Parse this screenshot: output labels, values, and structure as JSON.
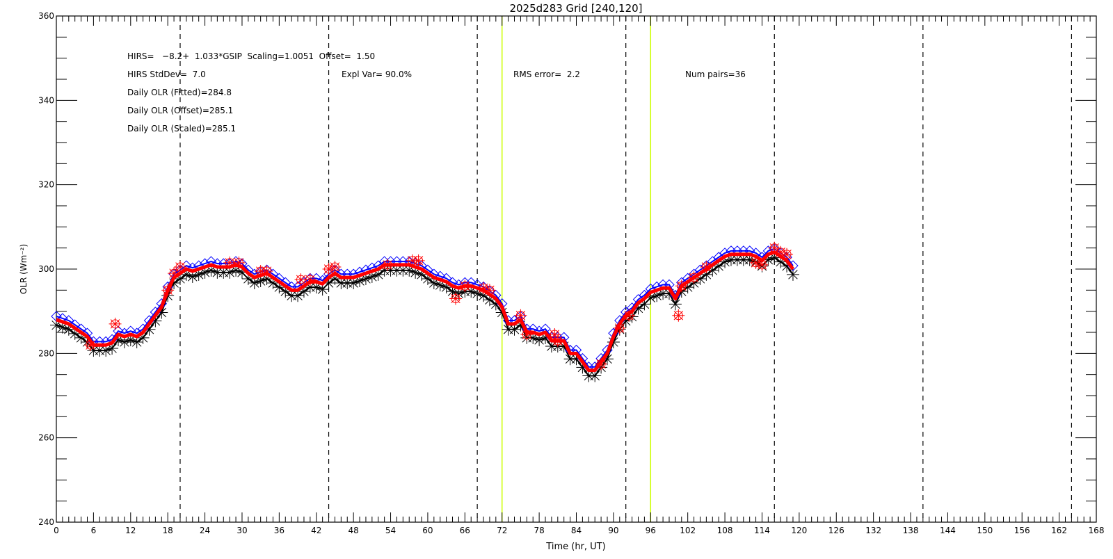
{
  "chart_data": {
    "type": "line",
    "title": "2025d283 Grid [240,120]",
    "xlabel": "Time (hr, UT)",
    "ylabel": "OLR (Wm⁻²)",
    "xlim": [
      0,
      168
    ],
    "ylim": [
      240,
      360
    ],
    "xticks": [
      0,
      6,
      12,
      18,
      24,
      30,
      36,
      42,
      48,
      54,
      60,
      66,
      72,
      78,
      84,
      90,
      96,
      102,
      108,
      114,
      120,
      126,
      132,
      138,
      144,
      150,
      156,
      162,
      168
    ],
    "yticks": [
      240,
      260,
      280,
      300,
      320,
      340,
      360
    ],
    "grid": false,
    "dashed_vlines": [
      20,
      44,
      68,
      92,
      116,
      140,
      164
    ],
    "highlight_vlines": [
      72,
      96
    ],
    "colors": {
      "fitted": "#ff0000",
      "diamonds": "#0000ff",
      "black": "#000000",
      "hirs": "#ff0000",
      "highlight": "#ccff00"
    },
    "annotations": {
      "line1": "HIRS=   −8.2+  1.033*GSIP  Scaling=1.0051  Offset=  1.50",
      "line2": "HIRS StdDev=  7.0",
      "line3": "Daily OLR (Fitted)=284.8",
      "line4": "Daily OLR (Offset)=285.1",
      "line5": "Daily OLR (Scaled)=285.1",
      "expl_var": "Expl Var= 90.0%",
      "rms": "RMS error=  2.2",
      "num_pairs": "Num pairs=36"
    },
    "fitted_line": {
      "x": [
        0,
        1,
        2,
        3,
        4,
        5,
        6,
        7,
        8,
        9,
        10,
        11,
        12,
        13,
        14,
        15,
        16,
        17,
        18,
        19,
        20,
        21,
        22,
        23,
        24,
        25,
        26,
        27,
        28,
        29,
        30,
        31,
        32,
        33,
        34,
        35,
        36,
        37,
        38,
        39,
        40,
        41,
        42,
        43,
        44,
        45,
        46,
        47,
        48,
        49,
        50,
        51,
        52,
        53,
        54,
        55,
        56,
        57,
        58,
        59,
        60,
        61,
        62,
        63,
        64,
        65,
        66,
        67,
        68,
        69,
        70,
        71,
        72,
        73,
        74,
        75,
        76,
        77,
        78,
        79,
        80,
        81,
        82,
        83,
        84,
        85,
        86,
        87,
        88,
        89,
        90,
        91,
        92,
        93,
        94,
        95,
        96,
        97,
        98,
        99,
        100,
        101,
        102,
        103,
        104,
        105,
        106,
        107,
        108,
        109,
        110,
        111,
        112,
        113,
        114,
        115,
        116,
        117,
        118,
        119
      ],
      "y": [
        288,
        287.5,
        287,
        286,
        285,
        284,
        282,
        282,
        282,
        282.5,
        284.5,
        284,
        284.5,
        284,
        285,
        287,
        289,
        291,
        295,
        298,
        299,
        300,
        299.5,
        300,
        300.5,
        301,
        300.5,
        300.5,
        300.5,
        301,
        300.5,
        299,
        298,
        298.5,
        299,
        298,
        297,
        296,
        295,
        295,
        296,
        297,
        297,
        296.5,
        298,
        299,
        298,
        298,
        298,
        298.5,
        299,
        299.5,
        300,
        301,
        301,
        301,
        301,
        301,
        300.5,
        300,
        299,
        298,
        297.5,
        297,
        296,
        295.5,
        296,
        296,
        295.5,
        295,
        294,
        293,
        291,
        287,
        287,
        288,
        285,
        285,
        284.5,
        285,
        283,
        283,
        283,
        280,
        280,
        278,
        276,
        276,
        278,
        280,
        284,
        287,
        289,
        290,
        292,
        293,
        294.5,
        295,
        295.5,
        295.5,
        293,
        296,
        297,
        298,
        299,
        300,
        301,
        302,
        303,
        303.5,
        303.5,
        303.5,
        303.5,
        303,
        302,
        303.5,
        304,
        303,
        302,
        300
      ]
    },
    "diamond_offset": 0.8,
    "black_offset": -1.3,
    "hirs_points": {
      "x": [
        5.5,
        9.5,
        18,
        19,
        20,
        28,
        29.5,
        33,
        34,
        39.5,
        41,
        44,
        45,
        53.5,
        57.5,
        58.5,
        64.5,
        66,
        69,
        70,
        75,
        76,
        80.5,
        81,
        88,
        91,
        92.5,
        100.5,
        101,
        103,
        105,
        113,
        114,
        116,
        117,
        118
      ],
      "y": [
        282,
        287,
        295,
        299,
        300.5,
        301.5,
        301.5,
        299.5,
        299.5,
        297.5,
        297.5,
        300,
        300.5,
        301,
        302,
        302,
        293,
        296,
        295.5,
        295,
        289,
        284.5,
        284.5,
        283,
        277.5,
        286,
        289,
        289,
        296,
        298,
        300.5,
        301.5,
        301,
        305,
        304,
        303.5
      ]
    }
  }
}
